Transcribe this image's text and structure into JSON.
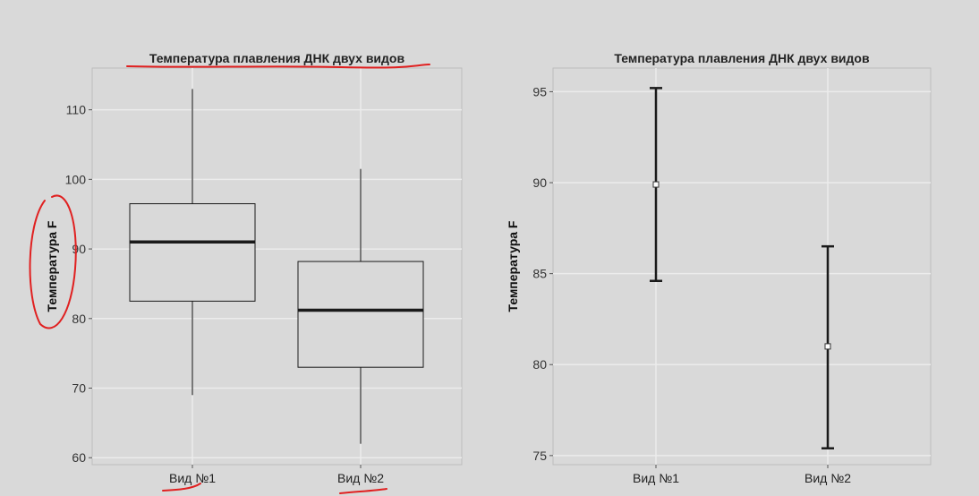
{
  "chart_data": [
    {
      "type": "boxplot",
      "title": "Температура плавления ДНК двух видов",
      "ylabel": "Температура F",
      "xlabel": "",
      "categories": [
        "Вид №1",
        "Вид №2"
      ],
      "boxes": [
        {
          "min": 69,
          "q1": 82.5,
          "median": 91,
          "q3": 96.5,
          "max": 113
        },
        {
          "min": 62,
          "q1": 73,
          "median": 81.2,
          "q3": 88.2,
          "max": 101.5
        }
      ],
      "yticks": [
        60,
        70,
        80,
        90,
        100,
        110
      ],
      "ylim": [
        59,
        116
      ],
      "grid": true
    },
    {
      "type": "errorbar",
      "title": "Температура плавления ДНК двух видов",
      "ylabel": "Температура F",
      "xlabel": "",
      "categories": [
        "Вид №1",
        "Вид №2"
      ],
      "points": [
        {
          "mean": 89.9,
          "lower": 84.6,
          "upper": 95.2
        },
        {
          "mean": 81.0,
          "lower": 75.4,
          "upper": 86.5
        }
      ],
      "yticks": [
        75,
        80,
        85,
        90,
        95
      ],
      "ylim": [
        74.5,
        96.3
      ],
      "grid": true
    }
  ],
  "colors": {
    "panel": "#d9d9d9",
    "grid": "#ececec",
    "box_fill": "#d9d9d9",
    "line": "#1a1a1a",
    "annotation": "#e02020"
  }
}
